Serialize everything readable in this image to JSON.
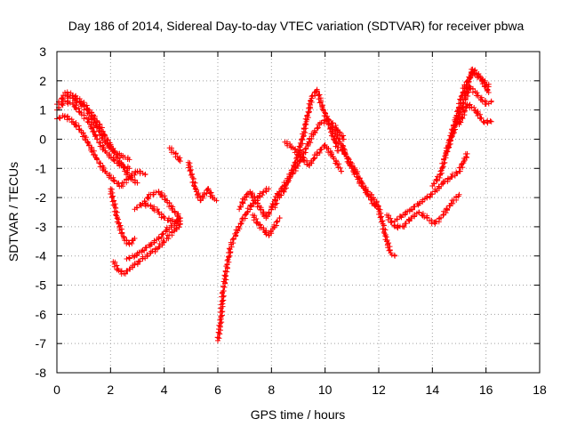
{
  "chart_data": {
    "type": "scatter",
    "title": "Day 186 of 2014, Sidereal Day-to-day VTEC variation (SDTVAR) for receiver pbwa",
    "xlabel": "GPS time / hours",
    "ylabel": "SDTVAR / TECUs",
    "xlim": [
      0,
      18
    ],
    "ylim": [
      -8,
      3
    ],
    "grid": true,
    "x_ticks": [
      "0",
      "2",
      "4",
      "6",
      "8",
      "10",
      "12",
      "14",
      "16",
      "18"
    ],
    "y_ticks": [
      "3",
      "2",
      "1",
      "0",
      "-1",
      "-2",
      "-3",
      "-4",
      "-5",
      "-6",
      "-7",
      "-8"
    ],
    "marker": "plus",
    "color": "#ff0000",
    "series": [
      {
        "name": "arc-1",
        "x": [
          0.0,
          0.3,
          0.6,
          0.9,
          1.2,
          1.5,
          1.8,
          2.1,
          2.4,
          2.7
        ],
        "y": [
          1.2,
          1.5,
          1.4,
          1.2,
          0.9,
          0.4,
          -0.1,
          -0.4,
          -0.55,
          -0.7
        ]
      },
      {
        "name": "arc-2",
        "x": [
          0.0,
          0.3,
          0.6,
          0.9,
          1.2,
          1.5,
          1.8,
          2.1,
          2.4,
          2.7
        ],
        "y": [
          1.0,
          1.3,
          1.2,
          0.9,
          0.6,
          0.0,
          -0.4,
          -0.7,
          -0.9,
          -1.0
        ]
      },
      {
        "name": "arc-3",
        "x": [
          0.0,
          0.3,
          0.6,
          0.9,
          1.2,
          1.5,
          1.8,
          2.1,
          2.4,
          2.7,
          3.0,
          3.3
        ],
        "y": [
          0.7,
          0.8,
          0.6,
          0.3,
          -0.2,
          -0.7,
          -1.1,
          -1.4,
          -1.6,
          -1.3,
          -1.1,
          -1.2
        ]
      },
      {
        "name": "arc-4",
        "x": [
          0.3,
          0.6,
          0.9,
          1.2,
          1.5,
          1.8,
          2.1,
          2.4,
          2.7,
          3.0
        ],
        "y": [
          1.6,
          1.5,
          1.3,
          1.0,
          0.6,
          0.1,
          -0.4,
          -0.8,
          -1.3,
          -1.5
        ]
      },
      {
        "name": "arc-5",
        "x": [
          2.0,
          2.15,
          2.3,
          2.5,
          2.7,
          2.9
        ],
        "y": [
          -1.7,
          -2.3,
          -2.9,
          -3.4,
          -3.6,
          -3.4
        ]
      },
      {
        "name": "arc-6",
        "x": [
          2.1,
          2.3,
          2.5,
          2.7,
          2.9,
          3.2,
          3.5,
          3.8,
          4.1,
          4.4,
          4.6
        ],
        "y": [
          -4.2,
          -4.5,
          -4.6,
          -4.45,
          -4.3,
          -4.1,
          -3.9,
          -3.7,
          -3.4,
          -3.1,
          -2.9
        ]
      },
      {
        "name": "arc-7",
        "x": [
          2.6,
          2.9,
          3.2,
          3.5,
          3.8,
          4.1,
          4.4,
          4.6
        ],
        "y": [
          -4.1,
          -4.0,
          -3.8,
          -3.6,
          -3.4,
          -3.1,
          -2.9,
          -2.7
        ]
      },
      {
        "name": "arc-8",
        "x": [
          2.9,
          3.2,
          3.5,
          3.8,
          4.0,
          4.3,
          4.6
        ],
        "y": [
          -2.4,
          -2.2,
          -2.3,
          -2.5,
          -2.7,
          -2.8,
          -2.8
        ]
      },
      {
        "name": "arc-9",
        "x": [
          3.2,
          3.5,
          3.8,
          4.1,
          4.4,
          4.6
        ],
        "y": [
          -2.2,
          -1.9,
          -1.8,
          -2.1,
          -2.5,
          -2.7
        ]
      },
      {
        "name": "arc-10",
        "x": [
          4.2,
          4.35,
          4.5,
          4.6
        ],
        "y": [
          -0.3,
          -0.45,
          -0.6,
          -0.75
        ]
      },
      {
        "name": "arc-11",
        "x": [
          4.9,
          5.05,
          5.2,
          5.35,
          5.5,
          5.65,
          5.8,
          5.95
        ],
        "y": [
          -0.8,
          -1.3,
          -1.8,
          -2.1,
          -1.9,
          -1.7,
          -2.0,
          -2.1
        ]
      },
      {
        "name": "arc-12",
        "x": [
          6.0,
          6.1,
          6.2,
          6.35,
          6.5,
          6.7,
          6.9,
          7.1,
          7.3,
          7.5,
          7.7,
          7.9
        ],
        "y": [
          -6.9,
          -6.3,
          -5.2,
          -4.3,
          -3.6,
          -3.2,
          -2.8,
          -2.5,
          -2.2,
          -2.0,
          -1.8,
          -1.7
        ]
      },
      {
        "name": "arc-13",
        "x": [
          6.8,
          7.0,
          7.2,
          7.4,
          7.6,
          7.8,
          8.0,
          8.2
        ],
        "y": [
          -2.4,
          -2.0,
          -1.8,
          -2.1,
          -2.4,
          -2.7,
          -2.4,
          -2.2
        ]
      },
      {
        "name": "arc-14",
        "x": [
          7.3,
          7.5,
          7.7,
          7.9,
          8.1,
          8.3
        ],
        "y": [
          -2.6,
          -2.9,
          -3.1,
          -3.3,
          -3.0,
          -2.7
        ]
      },
      {
        "name": "arc-15",
        "x": [
          8.3,
          8.5,
          8.7,
          8.9,
          9.1,
          9.3,
          9.5,
          9.7,
          9.9,
          10.1,
          10.3,
          10.5
        ],
        "y": [
          -2.0,
          -1.7,
          -1.2,
          -0.8,
          -0.2,
          0.6,
          1.4,
          1.7,
          1.1,
          0.6,
          0.1,
          -0.4
        ]
      },
      {
        "name": "arc-16",
        "x": [
          8.0,
          8.3,
          8.6,
          8.9,
          9.2,
          9.5,
          9.8,
          10.1,
          10.4,
          10.7
        ],
        "y": [
          -2.3,
          -1.8,
          -1.4,
          -1.0,
          -0.5,
          0.1,
          0.5,
          0.7,
          0.4,
          0.0
        ]
      },
      {
        "name": "arc-17",
        "x": [
          8.5,
          8.8,
          9.1,
          9.4,
          9.7,
          10.0,
          10.3,
          10.6
        ],
        "y": [
          -0.1,
          -0.3,
          -0.6,
          -0.9,
          -0.5,
          -0.2,
          -0.6,
          -1.1
        ]
      },
      {
        "name": "arc-18",
        "x": [
          10.2,
          10.4,
          10.6,
          10.8,
          11.0,
          11.2,
          11.4,
          11.6,
          11.8,
          12.0
        ],
        "y": [
          0.4,
          0.2,
          -0.2,
          -0.6,
          -0.9,
          -1.2,
          -1.6,
          -1.9,
          -2.2,
          -2.4
        ]
      },
      {
        "name": "arc-19",
        "x": [
          10.6,
          10.8,
          11.0,
          11.2,
          11.4,
          11.6,
          11.8,
          12.0
        ],
        "y": [
          -0.2,
          -0.6,
          -1.0,
          -1.3,
          -1.6,
          -1.8,
          -2.0,
          -2.3
        ]
      },
      {
        "name": "arc-20",
        "x": [
          12.0,
          12.15,
          12.3,
          12.45,
          12.6
        ],
        "y": [
          -2.4,
          -2.9,
          -3.5,
          -3.9,
          -4.0
        ]
      },
      {
        "name": "arc-21",
        "x": [
          12.3,
          12.6,
          12.9,
          13.2,
          13.5,
          13.8,
          14.1,
          14.4,
          14.7,
          15.0
        ],
        "y": [
          -2.6,
          -3.0,
          -3.0,
          -2.7,
          -2.5,
          -2.7,
          -2.9,
          -2.6,
          -2.2,
          -1.9
        ]
      },
      {
        "name": "arc-22",
        "x": [
          12.6,
          12.9,
          13.2,
          13.5,
          13.8,
          14.1,
          14.4,
          14.7,
          15.0,
          15.3
        ],
        "y": [
          -2.8,
          -2.6,
          -2.4,
          -2.2,
          -2.0,
          -1.8,
          -1.5,
          -1.3,
          -1.1,
          -0.5
        ]
      },
      {
        "name": "arc-23",
        "x": [
          14.0,
          14.3,
          14.6,
          14.9,
          15.2,
          15.5,
          15.8,
          16.1
        ],
        "y": [
          -1.6,
          -1.2,
          -0.2,
          0.8,
          1.8,
          2.3,
          2.1,
          1.8
        ]
      },
      {
        "name": "arc-24",
        "x": [
          14.5,
          14.8,
          15.1,
          15.4,
          15.7,
          16.0,
          16.2
        ],
        "y": [
          -0.5,
          0.3,
          1.1,
          1.8,
          1.5,
          1.2,
          1.3
        ]
      },
      {
        "name": "arc-25",
        "x": [
          15.0,
          15.3,
          15.6,
          15.9,
          16.2
        ],
        "y": [
          0.5,
          1.2,
          1.0,
          0.6,
          0.6
        ]
      },
      {
        "name": "arc-26",
        "x": [
          15.2,
          15.5,
          15.8,
          16.1
        ],
        "y": [
          1.5,
          2.4,
          2.1,
          1.6
        ]
      }
    ]
  }
}
